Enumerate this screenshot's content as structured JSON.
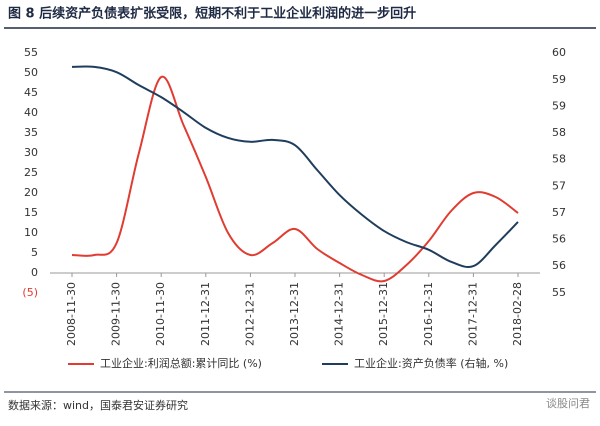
{
  "chart_data": {
    "type": "line",
    "title": "图 8    后续资产负债表扩张受限，短期不利于工业企业利润的进一步回升",
    "source": "数据来源：wind，国泰君安证券研究",
    "watermark": "谈股问君",
    "categories": [
      "2008-11-30",
      null,
      "2009-11-30",
      null,
      "2010-11-30",
      null,
      "2011-12-31",
      null,
      "2012-12-31",
      null,
      "2013-12-31",
      null,
      "2014-12-31",
      null,
      "2015-12-31",
      null,
      "2016-12-31",
      null,
      "2017-12-31",
      null,
      "2018-02-28"
    ],
    "series": [
      {
        "name": "工业企业:利润总额:累计同比 (%)",
        "color": "#e03c31",
        "values": [
          4.5,
          4.5,
          7.5,
          30,
          49,
          37,
          24,
          10,
          4.5,
          7.5,
          11,
          6,
          2.5,
          -0.5,
          -2,
          2,
          8,
          15.5,
          20,
          19,
          15
        ]
      },
      {
        "name": "工业企业:资产负债率 (右轴, %)",
        "color": "#1f3d5c",
        "axis": "y2",
        "values": [
          59.71,
          59.71,
          59.6,
          59.33,
          59.08,
          58.77,
          58.44,
          58.23,
          58.15,
          58.19,
          58.08,
          57.56,
          57.04,
          56.63,
          56.29,
          56.06,
          55.9,
          55.65,
          55.56,
          56.0,
          56.48
        ]
      }
    ],
    "ylim": [
      -5,
      55
    ],
    "yticks": [
      {
        "value": -5,
        "label": "(5)"
      },
      0,
      5,
      10,
      15,
      20,
      25,
      30,
      35,
      40,
      45,
      50,
      55
    ],
    "negative_tick_color": "#e03c31",
    "y2lim": [
      55,
      60
    ],
    "y2ticks": [
      55,
      {
        "value": 55.56,
        "label": "56"
      },
      {
        "value": 56.11,
        "label": "56"
      },
      {
        "value": 56.67,
        "label": "57"
      },
      {
        "value": 57.22,
        "label": "57"
      },
      {
        "value": 57.78,
        "label": "58"
      },
      {
        "value": 58.33,
        "label": "58"
      },
      {
        "value": 58.89,
        "label": "59"
      },
      {
        "value": 59.44,
        "label": "59"
      },
      60
    ],
    "legend": "bottom"
  }
}
